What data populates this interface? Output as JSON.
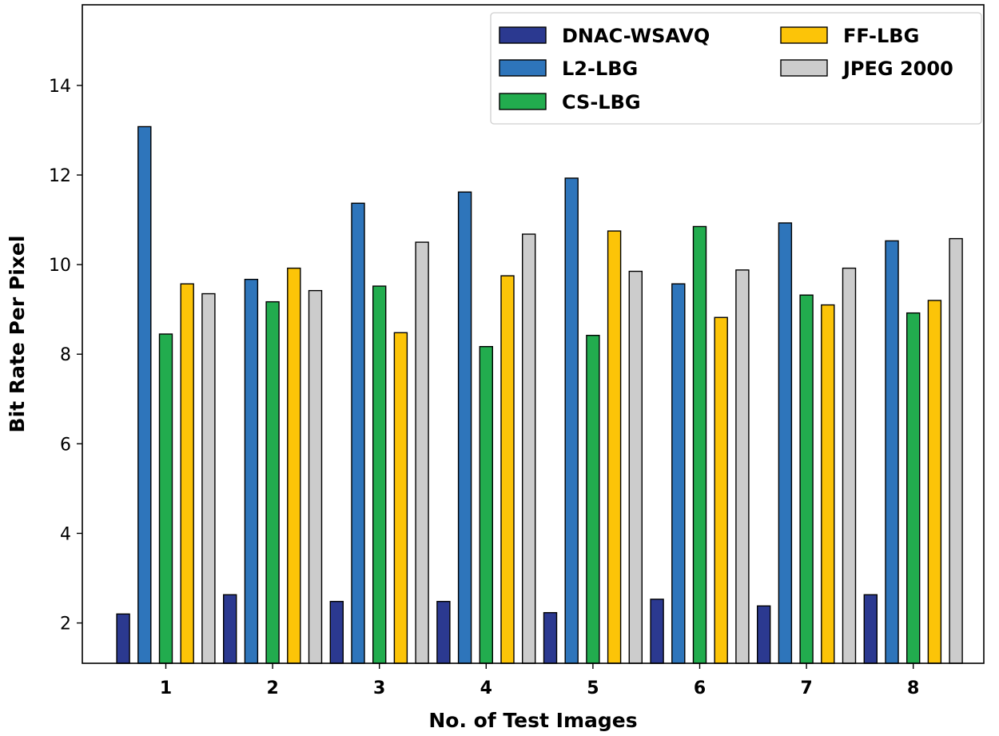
{
  "chart_data": {
    "type": "bar",
    "title": "",
    "xlabel": "No. of Test Images",
    "ylabel": "Bit Rate Per Pixel",
    "categories": [
      "1",
      "2",
      "3",
      "4",
      "5",
      "6",
      "7",
      "8"
    ],
    "ylim": [
      1.1,
      15.8
    ],
    "yticks": [
      2,
      4,
      6,
      8,
      10,
      12,
      14
    ],
    "legend_position": "top-right",
    "grid": false,
    "series": [
      {
        "name": "DNAC-WSAVQ",
        "color": "#2b3990",
        "values": [
          2.2,
          2.63,
          2.48,
          2.48,
          2.23,
          2.53,
          2.38,
          2.63
        ]
      },
      {
        "name": "L2-LBG",
        "color": "#2e75bb",
        "values": [
          13.08,
          9.67,
          11.37,
          11.62,
          11.93,
          9.57,
          10.93,
          10.53
        ]
      },
      {
        "name": "CS-LBG",
        "color": "#22ac4e",
        "values": [
          8.45,
          9.17,
          9.52,
          8.17,
          8.42,
          10.85,
          9.32,
          8.92
        ]
      },
      {
        "name": "FF-LBG",
        "color": "#fcc408",
        "values": [
          9.57,
          9.92,
          8.48,
          9.75,
          10.75,
          8.82,
          9.1,
          9.2
        ]
      },
      {
        "name": "JPEG 2000",
        "color": "#cccccc",
        "values": [
          9.35,
          9.42,
          10.5,
          10.68,
          9.85,
          9.88,
          9.92,
          10.58
        ]
      }
    ]
  }
}
